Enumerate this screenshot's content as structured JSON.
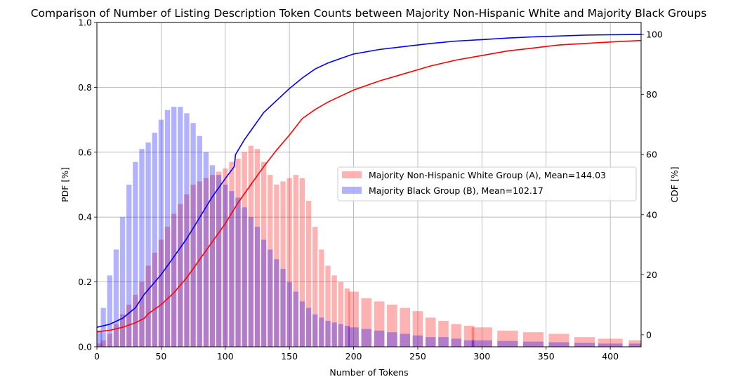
{
  "chart_data": {
    "type": "bar",
    "title": "Comparison of Number of Listing Description Token Counts between Majority Non-Hispanic White and Majority Black Groups",
    "xlabel": "Number of Tokens",
    "ylabel": "PDF [%]",
    "y2label": "CDF [%]",
    "xlim": [
      0,
      424
    ],
    "ylim": [
      0,
      1.0
    ],
    "y2lim": [
      -4,
      104
    ],
    "xticks": [
      0,
      50,
      100,
      150,
      200,
      250,
      300,
      350,
      400
    ],
    "yticks": [
      0.0,
      0.2,
      0.4,
      0.6,
      0.8,
      1.0
    ],
    "y2ticks": [
      0,
      20,
      40,
      60,
      80,
      100
    ],
    "grid": true,
    "legend_position": "center-right",
    "series": [
      {
        "name": "Majority Non-Hispanic White Group (A), Mean=144.03",
        "kind": "bar",
        "color": "#ff0000",
        "alpha": 0.3,
        "x": [
          0,
          5,
          10,
          15,
          20,
          25,
          30,
          35,
          40,
          45,
          50,
          55,
          60,
          65,
          70,
          75,
          80,
          85,
          90,
          95,
          100,
          105,
          110,
          115,
          120,
          125,
          130,
          135,
          140,
          145,
          150,
          155,
          160,
          165,
          170,
          175,
          180,
          185,
          190,
          195,
          200,
          210,
          220,
          230,
          240,
          250,
          260,
          270,
          280,
          290,
          300,
          320,
          340,
          360,
          380,
          400,
          424
        ],
        "values": [
          0.01,
          0.02,
          0.04,
          0.07,
          0.1,
          0.13,
          0.16,
          0.2,
          0.25,
          0.29,
          0.33,
          0.37,
          0.41,
          0.44,
          0.47,
          0.5,
          0.51,
          0.52,
          0.53,
          0.54,
          0.55,
          0.57,
          0.58,
          0.6,
          0.62,
          0.61,
          0.57,
          0.53,
          0.5,
          0.51,
          0.52,
          0.53,
          0.52,
          0.45,
          0.37,
          0.3,
          0.25,
          0.22,
          0.2,
          0.18,
          0.17,
          0.15,
          0.14,
          0.13,
          0.12,
          0.11,
          0.09,
          0.08,
          0.07,
          0.065,
          0.06,
          0.05,
          0.045,
          0.04,
          0.03,
          0.025,
          0.02
        ]
      },
      {
        "name": "Majority Black Group (B), Mean=102.17",
        "kind": "bar",
        "color": "#0000ff",
        "alpha": 0.3,
        "x": [
          0,
          5,
          10,
          15,
          20,
          25,
          30,
          35,
          40,
          45,
          50,
          55,
          60,
          65,
          70,
          75,
          80,
          85,
          90,
          95,
          100,
          105,
          110,
          115,
          120,
          125,
          130,
          135,
          140,
          145,
          150,
          155,
          160,
          165,
          170,
          175,
          180,
          185,
          190,
          195,
          200,
          210,
          220,
          230,
          240,
          250,
          260,
          270,
          280,
          290,
          300,
          320,
          340,
          360,
          380,
          400,
          424
        ],
        "values": [
          0.05,
          0.12,
          0.22,
          0.3,
          0.4,
          0.5,
          0.57,
          0.61,
          0.63,
          0.66,
          0.7,
          0.73,
          0.74,
          0.74,
          0.72,
          0.69,
          0.65,
          0.6,
          0.56,
          0.53,
          0.5,
          0.48,
          0.46,
          0.43,
          0.4,
          0.37,
          0.33,
          0.3,
          0.27,
          0.24,
          0.2,
          0.17,
          0.14,
          0.12,
          0.1,
          0.09,
          0.08,
          0.075,
          0.07,
          0.065,
          0.06,
          0.055,
          0.05,
          0.045,
          0.04,
          0.035,
          0.03,
          0.03,
          0.025,
          0.02,
          0.02,
          0.018,
          0.016,
          0.014,
          0.012,
          0.01,
          0.01
        ]
      },
      {
        "name": "CDF A",
        "kind": "line",
        "axis": "right",
        "color": "#ff0000",
        "x": [
          0,
          10,
          20,
          30,
          37,
          40,
          50,
          60,
          70,
          80,
          90,
          100,
          110,
          120,
          130,
          140,
          150,
          160,
          170,
          180,
          190,
          200,
          220,
          240,
          260,
          280,
          300,
          320,
          340,
          360,
          380,
          400,
          424
        ],
        "values": [
          1,
          1.5,
          2.5,
          4,
          5.5,
          7,
          10,
          14,
          19,
          25,
          31,
          37,
          44,
          50,
          56,
          61.5,
          66.5,
          72,
          75,
          77.5,
          79.5,
          81.5,
          84.5,
          87,
          89.5,
          91.5,
          93,
          94.5,
          95.5,
          96.5,
          97,
          97.5,
          98
        ]
      },
      {
        "name": "CDF B",
        "kind": "line",
        "axis": "right",
        "color": "#0000ff",
        "x": [
          0,
          10,
          20,
          30,
          37,
          40,
          50,
          60,
          70,
          80,
          90,
          100,
          107,
          108,
          115,
          120,
          130,
          140,
          150,
          160,
          170,
          180,
          190,
          200,
          220,
          240,
          260,
          280,
          300,
          320,
          340,
          360,
          380,
          400,
          424
        ],
        "values": [
          2.5,
          3.5,
          5.5,
          9,
          13.5,
          15,
          20,
          26,
          32,
          39,
          46,
          52,
          56,
          60,
          65,
          68,
          74,
          78,
          82,
          85.5,
          88.5,
          90.5,
          92,
          93.5,
          95,
          96,
          97,
          97.8,
          98.3,
          98.8,
          99.2,
          99.5,
          99.8,
          99.9,
          100
        ]
      }
    ]
  }
}
